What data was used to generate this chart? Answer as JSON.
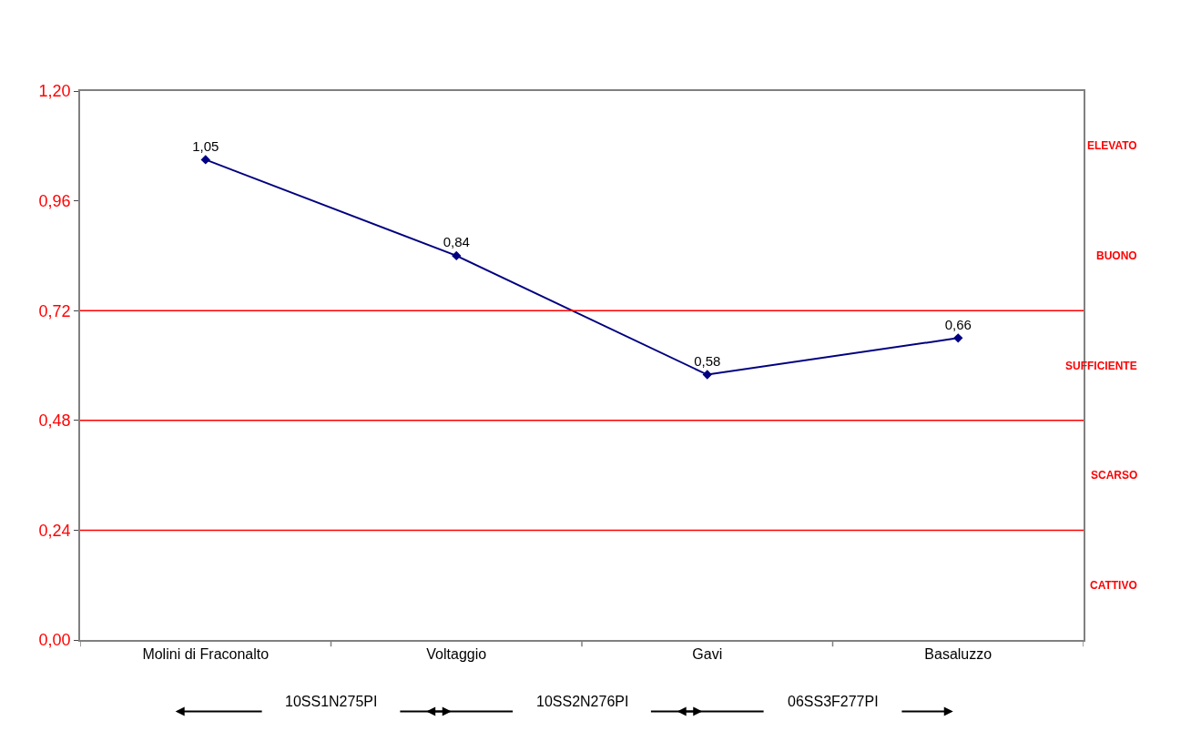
{
  "chart_data": {
    "type": "line",
    "categories": [
      "Molini di Fraconalto",
      "Voltaggio",
      "Gavi",
      "Basaluzzo"
    ],
    "series": [
      {
        "color": "#000080",
        "values": [
          1.05,
          0.84,
          0.58,
          0.66
        ],
        "value_labels": [
          "1,05",
          "0,84",
          "0,58",
          "0,66"
        ]
      }
    ],
    "marker": "diamond",
    "line_style": "solid",
    "legend": false,
    "ylim": [
      0,
      1.2
    ],
    "yticks": [
      {
        "value": 0,
        "label": "0,00"
      },
      {
        "value": 0.24,
        "label": "0,24"
      },
      {
        "value": 0.48,
        "label": "0,48"
      },
      {
        "value": 0.72,
        "label": "0,72"
      },
      {
        "value": 0.96,
        "label": "0,96"
      },
      {
        "value": 1.2,
        "label": "1,20"
      }
    ],
    "ref_lines": [
      {
        "axis": "y",
        "value": 0.24,
        "color": "#ff0000"
      },
      {
        "axis": "y",
        "value": 0.48,
        "color": "#ff0000"
      },
      {
        "axis": "y",
        "value": 0.72,
        "color": "#ff0000"
      }
    ],
    "annotations": [
      "ELEVATO",
      "BUONO",
      "SUFFICIENTE",
      "SCARSO",
      "CATTIVO",
      "10SS1N275PI",
      "10SS2N276PI",
      "06SS3F277PI"
    ]
  }
}
